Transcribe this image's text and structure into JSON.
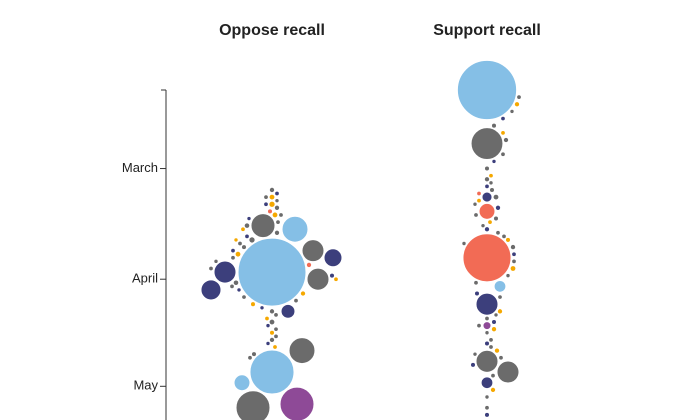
{
  "chart_data": {
    "type": "beeswarm",
    "ylim": [
      38,
      131
    ],
    "yticks": [
      {
        "value": 60,
        "label": "March"
      },
      {
        "value": 91,
        "label": "April"
      },
      {
        "value": 121,
        "label": "May"
      }
    ],
    "groups": [
      {
        "name": "Oppose recall",
        "dates": [
          89,
          77,
          76,
          83,
          85,
          89,
          91,
          94,
          100,
          111,
          117,
          120,
          126,
          127,
          66,
          67,
          68,
          68,
          69,
          70,
          70,
          71,
          72,
          73,
          73,
          74,
          75,
          76,
          77,
          78,
          79,
          80,
          80,
          81,
          82,
          83,
          84,
          85,
          86,
          87,
          88,
          90,
          91,
          92,
          93,
          94,
          95,
          96,
          97,
          98,
          99,
          100,
          101,
          102,
          103,
          104,
          105,
          106,
          107,
          108,
          109,
          110,
          112,
          113
        ],
        "sizes": [
          10000,
          1460,
          1250,
          1050,
          700,
          1050,
          1050,
          870,
          420,
          1460,
          4200,
          550,
          2500,
          2500,
          40,
          30,
          50,
          30,
          25,
          60,
          30,
          40,
          35,
          30,
          50,
          25,
          30,
          45,
          30,
          40,
          30,
          60,
          25,
          30,
          35,
          30,
          50,
          30,
          25,
          40,
          30,
          35,
          30,
          45,
          30,
          25,
          40,
          30,
          30,
          35,
          25,
          40,
          30,
          30,
          50,
          25,
          30,
          35,
          30,
          40,
          25,
          30,
          35,
          30
        ],
        "colors": [
          "#85bfe6",
          "#85bfe6",
          "#6b6b6b",
          "#6b6b6b",
          "#3c3f7c",
          "#3c3f7c",
          "#6b6b6b",
          "#3c3f7c",
          "#3c3f7c",
          "#6b6b6b",
          "#85bfe6",
          "#85bfe6",
          "#8e4a97",
          "#6b6b6b",
          "#6b6b6b",
          "#3c3f7c",
          "#f5a800",
          "#6b6b6b",
          "#6b6b6b",
          "#f5a800",
          "#3c3f7c",
          "#6b6b6b",
          "#f26b55",
          "#6b6b6b",
          "#f5a800",
          "#3c3f7c",
          "#6b6b6b",
          "#6b6b6b",
          "#f5a800",
          "#6b6b6b",
          "#3c3f7c",
          "#6b6b6b",
          "#f5a800",
          "#6b6b6b",
          "#6b6b6b",
          "#3c3f7c",
          "#f5a800",
          "#6b6b6b",
          "#6b6b6b",
          "#f26b55",
          "#6b6b6b",
          "#3c3f7c",
          "#f5a800",
          "#6b6b6b",
          "#6b6b6b",
          "#3c3f7c",
          "#f5a800",
          "#6b6b6b",
          "#6b6b6b",
          "#f5a800",
          "#3c3f7c",
          "#6b6b6b",
          "#6b6b6b",
          "#f5a800",
          "#6b6b6b",
          "#3c3f7c",
          "#6b6b6b",
          "#f5a800",
          "#6b6b6b",
          "#6b6b6b",
          "#3c3f7c",
          "#f5a800",
          "#6b6b6b",
          "#6b6b6b"
        ]
      },
      {
        "name": "Support recall",
        "dates": [
          38,
          53,
          72,
          68,
          85,
          93,
          98,
          104,
          114,
          117,
          120,
          40,
          42,
          44,
          46,
          48,
          50,
          52,
          56,
          58,
          60,
          62,
          63,
          64,
          65,
          66,
          67,
          68,
          69,
          70,
          71,
          73,
          74,
          75,
          76,
          77,
          78,
          79,
          80,
          81,
          82,
          84,
          86,
          88,
          90,
          92,
          95,
          96,
          100,
          101,
          102,
          103,
          104,
          105,
          106,
          108,
          109,
          110,
          111,
          112,
          113,
          115,
          118,
          122,
          124,
          127,
          129
        ],
        "sizes": [
          7600,
          2200,
          550,
          220,
          5000,
          300,
          1050,
          140,
          1050,
          1050,
          300,
          30,
          40,
          25,
          30,
          35,
          30,
          40,
          30,
          25,
          35,
          30,
          40,
          25,
          30,
          35,
          30,
          50,
          30,
          25,
          40,
          30,
          35,
          30,
          25,
          40,
          30,
          30,
          35,
          25,
          40,
          30,
          30,
          50,
          25,
          30,
          35,
          30,
          40,
          25,
          30,
          35,
          30,
          40,
          25,
          30,
          35,
          30,
          40,
          25,
          30,
          35,
          30,
          40,
          25,
          30,
          35
        ],
        "colors": [
          "#85bfe6",
          "#6b6b6b",
          "#f26b55",
          "#3c3f7c",
          "#f26b55",
          "#85bfe6",
          "#3c3f7c",
          "#8e4a97",
          "#6b6b6b",
          "#6b6b6b",
          "#3c3f7c",
          "#6b6b6b",
          "#f5a800",
          "#6b6b6b",
          "#3c3f7c",
          "#6b6b6b",
          "#f5a800",
          "#6b6b6b",
          "#6b6b6b",
          "#3c3f7c",
          "#6b6b6b",
          "#f5a800",
          "#6b6b6b",
          "#6b6b6b",
          "#3c3f7c",
          "#6b6b6b",
          "#f26b55",
          "#6b6b6b",
          "#f5a800",
          "#6b6b6b",
          "#3c3f7c",
          "#6b6b6b",
          "#6b6b6b",
          "#f5a800",
          "#6b6b6b",
          "#3c3f7c",
          "#6b6b6b",
          "#6b6b6b",
          "#f5a800",
          "#6b6b6b",
          "#6b6b6b",
          "#3c3f7c",
          "#6b6b6b",
          "#f5a800",
          "#6b6b6b",
          "#6b6b6b",
          "#3c3f7c",
          "#6b6b6b",
          "#f5a800",
          "#6b6b6b",
          "#6b6b6b",
          "#3c3f7c",
          "#6b6b6b",
          "#f5a800",
          "#6b6b6b",
          "#6b6b6b",
          "#3c3f7c",
          "#6b6b6b",
          "#f5a800",
          "#6b6b6b",
          "#6b6b6b",
          "#3c3f7c",
          "#6b6b6b",
          "#f5a800",
          "#6b6b6b",
          "#6b6b6b",
          "#3c3f7c"
        ]
      }
    ]
  }
}
